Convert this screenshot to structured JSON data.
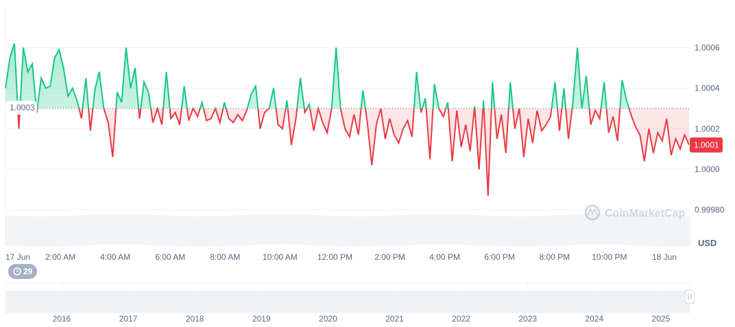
{
  "chart_data": {
    "type": "line",
    "baseline": 1.0003,
    "last_value_label": "1.0001",
    "ylim": [
      0.99975,
      1.00068
    ],
    "yticks": [
      "1.0006",
      "1.0004",
      "1.0002",
      "1.0000",
      "0.99980"
    ],
    "ytick_values": [
      1.0006,
      1.0004,
      1.0002,
      1.0,
      0.9998
    ],
    "xticks": [
      "17 Jun",
      "2:00 AM",
      "4:00 AM",
      "6:00 AM",
      "8:00 AM",
      "10:00 AM",
      "12:00 PM",
      "2:00 PM",
      "4:00 PM",
      "6:00 PM",
      "8:00 PM",
      "10:00 PM",
      "18 Jun"
    ],
    "xtick_hours": [
      0,
      2,
      4,
      6,
      8,
      10,
      12,
      14,
      16,
      18,
      20,
      22,
      24
    ],
    "x_range_hours": [
      0,
      24.9
    ],
    "currency": "USD",
    "watermark": "CoinMarketCap",
    "colors": {
      "up": "#16c784",
      "down": "#ea3943"
    },
    "values": [
      1.0004,
      1.00055,
      1.00062,
      1.0002,
      1.0006,
      1.00048,
      1.00052,
      1.00028,
      1.00045,
      1.0004,
      1.00041,
      1.00055,
      1.00059,
      1.0005,
      1.00036,
      1.0004,
      1.00034,
      1.00025,
      1.00045,
      1.00019,
      1.00039,
      1.00048,
      1.0003,
      1.00023,
      1.00006,
      1.00038,
      1.00033,
      1.0006,
      1.0004,
      1.0005,
      1.00025,
      1.00043,
      1.00038,
      1.00023,
      1.0003,
      1.00022,
      1.00048,
      1.00025,
      1.00028,
      1.00022,
      1.00041,
      1.00024,
      1.0003,
      1.00026,
      1.00033,
      1.00024,
      1.00025,
      1.0003,
      1.00023,
      1.00033,
      1.00025,
      1.00023,
      1.00027,
      1.00024,
      1.00029,
      1.00037,
      1.00041,
      1.0002,
      1.00028,
      1.0003,
      1.0004,
      1.00022,
      1.0002,
      1.00034,
      1.00012,
      1.00025,
      1.00045,
      1.00028,
      1.00032,
      1.00019,
      1.0003,
      1.00023,
      1.00018,
      1.0003,
      1.0006,
      1.0003,
      1.0002,
      1.00016,
      1.00027,
      1.00017,
      1.00039,
      1.00023,
      1.00002,
      1.00022,
      1.0003,
      1.00015,
      1.00025,
      1.00017,
      1.00013,
      1.0002,
      1.00024,
      1.00016,
      1.00048,
      1.00028,
      1.00035,
      1.00005,
      1.00042,
      1.0003,
      1.00026,
      1.00033,
      1.00004,
      1.00029,
      1.00011,
      1.00022,
      1.00009,
      1.00031,
      1.0,
      1.00034,
      0.99987,
      1.00043,
      1.00015,
      1.00027,
      1.00008,
      1.00043,
      1.0002,
      1.0003,
      1.00006,
      1.00025,
      1.00013,
      1.00029,
      1.00019,
      1.00022,
      1.00026,
      1.00043,
      1.00019,
      1.0004,
      1.00015,
      1.00033,
      1.0006,
      1.0003,
      1.00046,
      1.00022,
      1.00029,
      1.00025,
      1.00043,
      1.00018,
      1.00026,
      1.00014,
      1.00044,
      1.00034,
      1.00027,
      1.00021,
      1.00017,
      1.00004,
      1.0002,
      1.00008,
      1.00018,
      1.00014,
      1.00025,
      1.00007,
      1.00015,
      1.0001,
      1.00017,
      1.00012
    ]
  },
  "navigator": {
    "years": [
      "2016",
      "2017",
      "2018",
      "2019",
      "2020",
      "2021",
      "2022",
      "2023",
      "2024",
      "2025"
    ],
    "events_badge": "29"
  }
}
